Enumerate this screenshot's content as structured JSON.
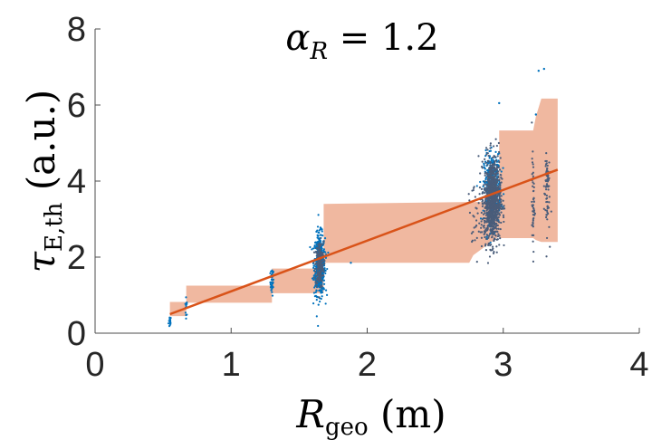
{
  "chart_data": {
    "type": "scatter",
    "title": "α_R = 1.2",
    "title_main": "α",
    "title_sub": "R",
    "title_rest": " = 1.2",
    "xlabel_main": "R",
    "xlabel_sub": "geo",
    "xlabel_rest": " (m)",
    "ylabel_main": "τ",
    "ylabel_sub": "E,th",
    "ylabel_rest": " (a.u.)",
    "xlim": [
      0,
      4
    ],
    "ylim": [
      0,
      8
    ],
    "xticks": [
      "0",
      "1",
      "2",
      "3",
      "4"
    ],
    "yticks": [
      "0",
      "2",
      "4",
      "6",
      "8"
    ],
    "grid": false,
    "fit_line": {
      "x": [
        0.55,
        3.4
      ],
      "y": [
        0.5,
        4.3
      ],
      "color": "#D95319"
    },
    "band": {
      "color": "#F0B8A0",
      "points": [
        [
          0.55,
          0.45,
          0.82
        ],
        [
          0.67,
          0.45,
          0.82
        ],
        [
          0.67,
          0.8,
          1.25
        ],
        [
          1.3,
          0.8,
          1.25
        ],
        [
          1.3,
          1.05,
          1.7
        ],
        [
          1.68,
          1.05,
          1.7
        ],
        [
          1.68,
          1.85,
          3.4
        ],
        [
          2.75,
          1.85,
          3.45
        ],
        [
          2.78,
          2.05,
          3.45
        ],
        [
          2.97,
          2.55,
          3.45
        ],
        [
          2.97,
          2.5,
          5.33
        ],
        [
          3.22,
          2.5,
          5.33
        ],
        [
          3.24,
          2.45,
          5.7
        ],
        [
          3.28,
          2.4,
          6.17
        ],
        [
          3.4,
          2.4,
          6.17
        ]
      ]
    },
    "scatter_clusters": [
      {
        "x": 0.55,
        "xs": 0.005,
        "y": 0.3,
        "ys": 0.08,
        "n": 15,
        "color": "#0072BD"
      },
      {
        "x": 0.67,
        "xs": 0.004,
        "y": 0.7,
        "ys": 0.12,
        "n": 15,
        "color": "#0072BD"
      },
      {
        "x": 1.3,
        "xs": 0.006,
        "y": 1.35,
        "ys": 0.18,
        "n": 40,
        "color": "#0072BD"
      },
      {
        "x": 1.65,
        "xs": 0.02,
        "y": 1.8,
        "ys": 0.4,
        "n": 500,
        "color": "#0072BD"
      },
      {
        "x": 1.65,
        "xs": 0.015,
        "y": 1.8,
        "ys": 0.3,
        "n": 200,
        "color": "#4A5D7A"
      },
      {
        "x": 2.92,
        "xs": 0.03,
        "y": 3.8,
        "ys": 0.45,
        "n": 400,
        "color": "#0072BD"
      },
      {
        "x": 2.92,
        "xs": 0.03,
        "y": 3.5,
        "ys": 0.55,
        "n": 900,
        "color": "#4A5D7A"
      },
      {
        "x": 2.8,
        "xs": 0.03,
        "y": 3.0,
        "ys": 0.5,
        "n": 40,
        "color": "#4A5D7A"
      },
      {
        "x": 3.22,
        "xs": 0.005,
        "y": 3.4,
        "ys": 0.6,
        "n": 50,
        "color": "#4A5D7A"
      },
      {
        "x": 3.32,
        "xs": 0.01,
        "y": 3.8,
        "ys": 0.6,
        "n": 70,
        "color": "#4A5D7A"
      }
    ],
    "outliers": [
      [
        3.3,
        6.95
      ],
      [
        3.26,
        6.9
      ],
      [
        2.97,
        6.05
      ],
      [
        3.24,
        5.75
      ],
      [
        1.88,
        1.85
      ]
    ]
  }
}
